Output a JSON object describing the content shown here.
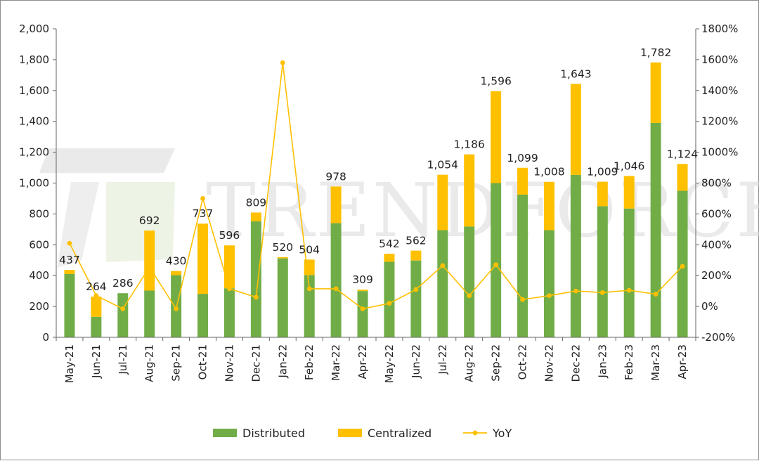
{
  "chart_data": {
    "type": "bar",
    "stacked": true,
    "categories": [
      "May-21",
      "Jun-21",
      "Jul-21",
      "Aug-21",
      "Sep-21",
      "Oct-21",
      "Nov-21",
      "Dec-21",
      "Jan-22",
      "Feb-22",
      "Mar-22",
      "Apr-22",
      "May-22",
      "Jun-22",
      "Jul-22",
      "Aug-22",
      "Sep-22",
      "Oct-22",
      "Nov-22",
      "Dec-22",
      "Jan-23",
      "Feb-23",
      "Mar-23",
      "Apr-23"
    ],
    "series": [
      {
        "name": "Distributed",
        "color": "#70ad47",
        "values": [
          410,
          133,
          286,
          303,
          403,
          282,
          318,
          752,
          512,
          404,
          740,
          300,
          490,
          498,
          695,
          718,
          1000,
          925,
          695,
          1053,
          850,
          835,
          1390,
          950
        ]
      },
      {
        "name": "Centralized",
        "color": "#ffc000",
        "values": [
          27,
          131,
          0,
          389,
          27,
          455,
          278,
          57,
          8,
          100,
          238,
          9,
          52,
          64,
          359,
          468,
          596,
          174,
          313,
          590,
          159,
          211,
          392,
          174
        ]
      }
    ],
    "totals": [
      "437",
      "264",
      "286",
      "692",
      "430",
      "737",
      "596",
      "809",
      "520",
      "504",
      "978",
      "309",
      "542",
      "562",
      "1,054",
      "1,186",
      "1,596",
      "1,099",
      "1,008",
      "1,643",
      "1,009",
      "1,046",
      "1,782",
      "1,124"
    ],
    "yoy": {
      "name": "YoY",
      "color": "#ffc000",
      "values": [
        410,
        70,
        -15,
        255,
        -15,
        700,
        115,
        60,
        1580,
        115,
        115,
        -15,
        20,
        110,
        265,
        70,
        270,
        45,
        70,
        100,
        90,
        105,
        80,
        260
      ]
    },
    "y_left": {
      "min": 0,
      "max": 2000,
      "step": 200,
      "tick_labels": [
        "0",
        "200",
        "400",
        "600",
        "800",
        "1,000",
        "1,200",
        "1,400",
        "1,600",
        "1,800",
        "2,000"
      ]
    },
    "y_right": {
      "min": -200,
      "max": 1800,
      "step": 200,
      "tick_labels": [
        "-200%",
        "0%",
        "200%",
        "400%",
        "600%",
        "800%",
        "1000%",
        "1200%",
        "1400%",
        "1600%",
        "1800%"
      ]
    },
    "legend": {
      "placement": "bottom",
      "items": [
        "Distributed",
        "Centralized",
        "YoY"
      ]
    },
    "watermark": "TRENDFORCE",
    "grid": false
  }
}
